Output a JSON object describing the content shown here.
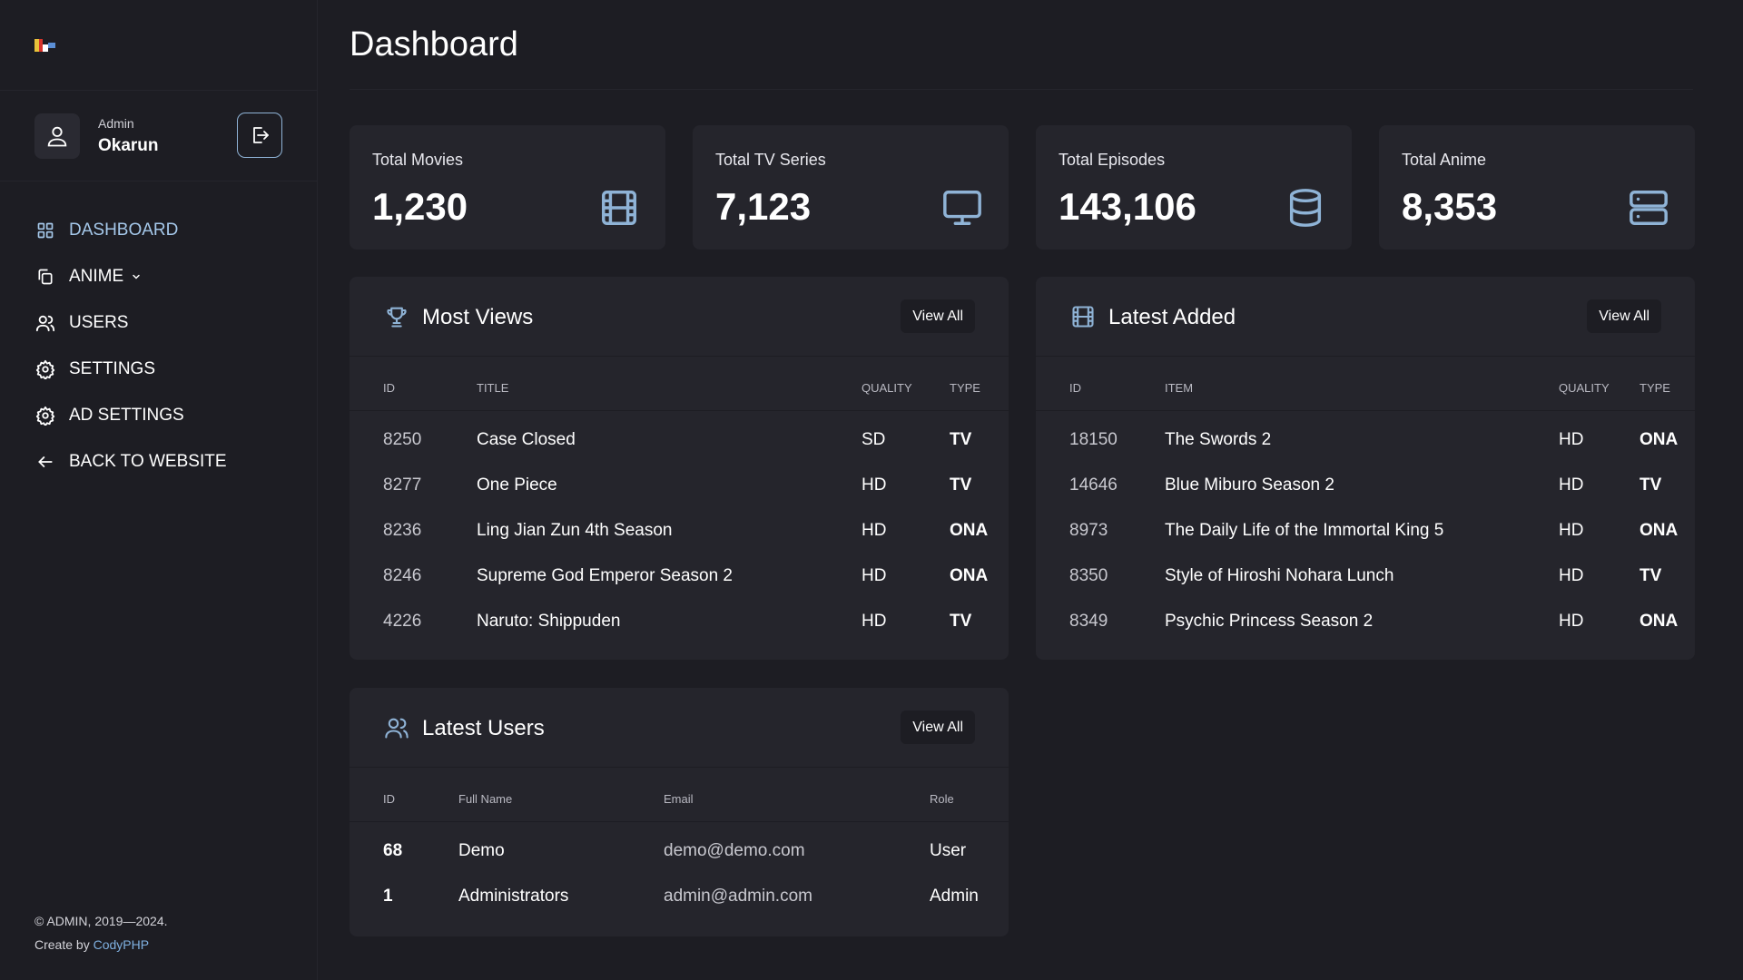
{
  "sidebar": {
    "profile": {
      "role": "Admin",
      "name": "Okarun"
    },
    "nav": [
      {
        "label": "DASHBOARD",
        "icon": "grid-icon",
        "active": true
      },
      {
        "label": "ANIME",
        "icon": "copy-icon",
        "active": false
      },
      {
        "label": "USERS",
        "icon": "users-icon",
        "active": false
      },
      {
        "label": "SETTINGS",
        "icon": "gear-icon",
        "active": false
      },
      {
        "label": "AD SETTINGS",
        "icon": "gear-icon",
        "active": false
      },
      {
        "label": "BACK TO WEBSITE",
        "icon": "arrow-left-icon",
        "active": false
      }
    ],
    "footer": {
      "copyright": "© ADMIN, 2019—2024.",
      "created_prefix": "Create by ",
      "created_link": "CodyPHP"
    }
  },
  "main": {
    "title": "Dashboard",
    "stats": [
      {
        "label": "Total Movies",
        "value": "1,230",
        "icon": "film-icon"
      },
      {
        "label": "Total TV Series",
        "value": "7,123",
        "icon": "monitor-icon"
      },
      {
        "label": "Total Episodes",
        "value": "143,106",
        "icon": "database-icon"
      },
      {
        "label": "Total Anime",
        "value": "8,353",
        "icon": "server-icon"
      }
    ],
    "most_views": {
      "title": "Most Views",
      "view_all": "View All",
      "headers": [
        "ID",
        "TITLE",
        "QUALITY",
        "TYPE"
      ],
      "rows": [
        {
          "id": "8250",
          "title": "Case Closed",
          "quality": "SD",
          "type": "TV"
        },
        {
          "id": "8277",
          "title": "One Piece",
          "quality": "HD",
          "type": "TV"
        },
        {
          "id": "8236",
          "title": "Ling Jian Zun 4th Season",
          "quality": "HD",
          "type": "ONA"
        },
        {
          "id": "8246",
          "title": "Supreme God Emperor Season 2",
          "quality": "HD",
          "type": "ONA"
        },
        {
          "id": "4226",
          "title": "Naruto: Shippuden",
          "quality": "HD",
          "type": "TV"
        }
      ]
    },
    "latest_added": {
      "title": "Latest Added",
      "view_all": "View All",
      "headers": [
        "ID",
        "ITEM",
        "QUALITY",
        "TYPE"
      ],
      "rows": [
        {
          "id": "18150",
          "title": "The Swords 2",
          "quality": "HD",
          "type": "ONA"
        },
        {
          "id": "14646",
          "title": "Blue Miburo Season 2",
          "quality": "HD",
          "type": "TV"
        },
        {
          "id": "8973",
          "title": "The Daily Life of the Immortal King 5",
          "quality": "HD",
          "type": "ONA"
        },
        {
          "id": "8350",
          "title": "Style of Hiroshi Nohara Lunch",
          "quality": "HD",
          "type": "TV"
        },
        {
          "id": "8349",
          "title": "Psychic Princess Season 2",
          "quality": "HD",
          "type": "ONA"
        }
      ]
    },
    "latest_users": {
      "title": "Latest Users",
      "view_all": "View All",
      "headers": [
        "ID",
        "Full Name",
        "Email",
        "Role"
      ],
      "rows": [
        {
          "id": "68",
          "name": "Demo",
          "email": "demo@demo.com",
          "role": "User"
        },
        {
          "id": "1",
          "name": "Administrators",
          "email": "admin@admin.com",
          "role": "Admin"
        }
      ]
    }
  },
  "colors": {
    "background": "#1d1d23",
    "card": "#25252c",
    "accent": "#a5c8ea",
    "icon": "#8fb3d6"
  }
}
